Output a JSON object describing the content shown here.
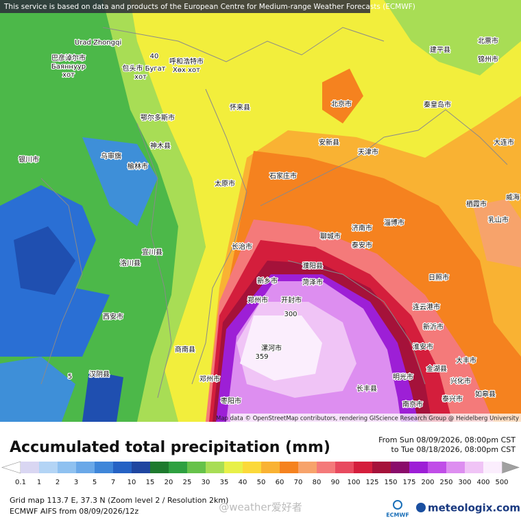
{
  "banner": "This service is based on data and products of the European Centre for Medium-range Weather Forecasts (ECMWF)",
  "attribution": "Map data © OpenStreetMap contributors, rendering GIScience Research Group @ Heidelberg University",
  "map_labels": [
    "Urad Zhongqi",
    "巴彦淖尔市",
    "Баяннуур",
    "хот",
    "包头市 Бугат",
    "хот",
    "呼和浩特市",
    "Хөх хот",
    "鄂尔多斯市",
    "神木县",
    "榆林市",
    "乌审旗",
    "银川市",
    "北京市",
    "天津市",
    "石家庄市",
    "太原市",
    "济南市",
    "郑州市",
    "新乡市",
    "开封市",
    "菏泽市",
    "濮阳县",
    "聊城市",
    "泰安市",
    "淄博市",
    "日照市",
    "连云港市",
    "新沂市",
    "淮安市",
    "大丰市",
    "兴化市",
    "泰兴市",
    "如皋县",
    "南京市",
    "金湖县",
    "明光市",
    "长丰县",
    "漯河市",
    "邓州市",
    "枣阳市",
    "汉阴县",
    "商南县",
    "长治市",
    "西安市",
    "洛川县",
    "宜川县",
    "大连市",
    "秦皇岛市",
    "锦州市",
    "北票市",
    "建平县",
    "栖霞市",
    "乳山市",
    "威海",
    "安新县",
    "怀来县",
    "40",
    "300",
    "359",
    "5"
  ],
  "title": "Accumulated total precipitation (mm)",
  "period_from": "From Sun 08/09/2026, 08:00pm CST",
  "period_to": "to Tue 08/18/2026, 08:00pm CST",
  "colorbar": {
    "ticks": [
      0.1,
      1,
      2,
      3,
      5,
      7,
      10,
      15,
      20,
      25,
      30,
      35,
      40,
      50,
      60,
      70,
      80,
      90,
      100,
      125,
      150,
      175,
      200,
      250,
      300,
      400,
      500
    ],
    "colors": [
      "#d9d6f2",
      "#b3d4f5",
      "#8fc1f0",
      "#6aa8e8",
      "#3f86d9",
      "#2562c4",
      "#1f46a0",
      "#1e7a2e",
      "#2ea040",
      "#66c24a",
      "#a8dd55",
      "#e8f048",
      "#fbd93a",
      "#f9b233",
      "#f5821f",
      "#f7a36b",
      "#f47a7a",
      "#e84a5f",
      "#d41e3c",
      "#a5123a",
      "#8a0c6a",
      "#9d1fd6",
      "#c04de8",
      "#dd8ef0",
      "#f0c4f6",
      "#fbeefd"
    ],
    "under_color": "#ffffff",
    "over_color": "#a0a0a0"
  },
  "grid_info": "Grid map 113.7 E, 37.3 N (Zoom level 2 / Resolution 2km)",
  "model_info": "ECMWF AIFS from  08/09/2026/12z",
  "watermark": "@weather爱好者",
  "ecmwf_logo": "ECMWF",
  "brand": "meteologix.com"
}
